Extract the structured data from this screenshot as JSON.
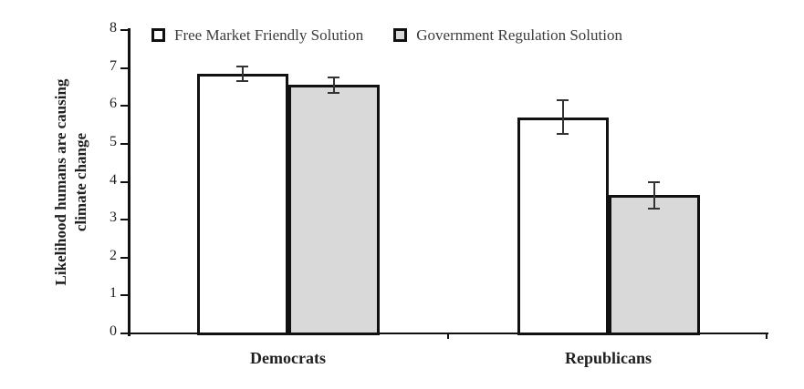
{
  "chart_data": {
    "type": "bar",
    "title": "",
    "categories": [
      "Democrats",
      "Republicans"
    ],
    "series": [
      {
        "name": "Free Market Friendly Solution",
        "values": [
          6.85,
          5.7
        ],
        "errors": [
          0.2,
          0.45
        ],
        "fill": "#ffffff"
      },
      {
        "name": "Government Regulation Solution",
        "values": [
          6.55,
          3.65
        ],
        "errors": [
          0.2,
          0.35
        ],
        "fill": "#d9d9d9"
      }
    ],
    "ylabel": "Likelihood humans are causing climate change",
    "ylabel_lines": [
      "Likelihood humans are causing",
      "climate change"
    ],
    "xlabel": "",
    "ylim": [
      0,
      8
    ],
    "yticks": [
      0,
      1,
      2,
      3,
      4,
      5,
      6,
      7,
      8
    ],
    "grid": false,
    "legend_position": "top",
    "bar_border_color": "#111111",
    "axis_color": "#111111",
    "error_bar_color": "#333333",
    "text_color": "#1f1f1f",
    "legend_text_color": "#3b3b3b"
  }
}
